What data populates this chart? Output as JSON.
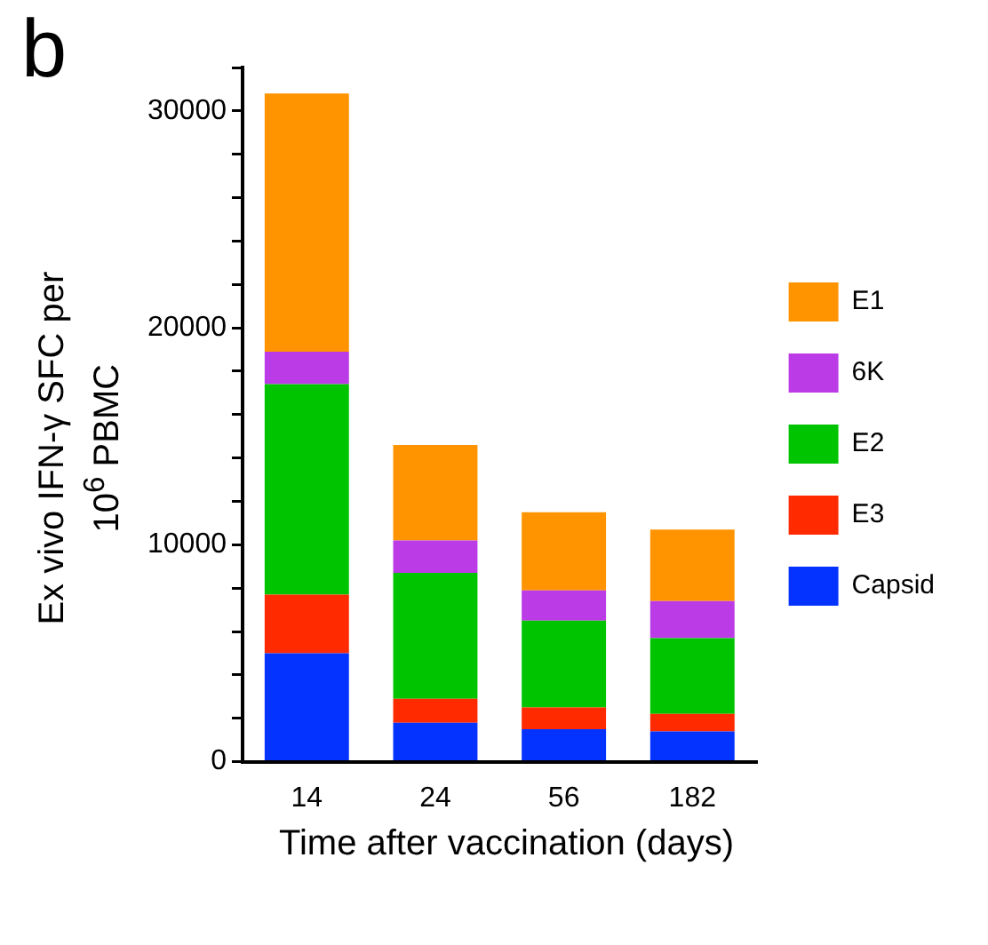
{
  "chart_data": {
    "type": "bar",
    "stacked": true,
    "categories": [
      "14",
      "24",
      "56",
      "182"
    ],
    "series": [
      {
        "name": "Capsid",
        "color": "#0433ff",
        "values": [
          5000,
          1800,
          1500,
          1400
        ]
      },
      {
        "name": "E3",
        "color": "#ff2a00",
        "values": [
          2700,
          1100,
          1000,
          800
        ]
      },
      {
        "name": "E2",
        "color": "#00c400",
        "values": [
          9700,
          5800,
          4000,
          3500
        ]
      },
      {
        "name": "6K",
        "color": "#bb3be6",
        "values": [
          1500,
          1500,
          1400,
          1700
        ]
      },
      {
        "name": "E1",
        "color": "#ff9400",
        "values": [
          11900,
          4400,
          3600,
          3300
        ]
      }
    ],
    "ylim": [
      0,
      32000
    ],
    "yticks": [
      0,
      {
        "value": 2000,
        "label": null
      },
      {
        "value": 4000,
        "label": null
      },
      {
        "value": 6000,
        "label": null
      },
      {
        "value": 8000,
        "label": null
      },
      10000,
      {
        "value": 12000,
        "label": null
      },
      {
        "value": 14000,
        "label": null
      },
      {
        "value": 16000,
        "label": null
      },
      {
        "value": 18000,
        "label": null
      },
      20000,
      {
        "value": 22000,
        "label": null
      },
      {
        "value": 24000,
        "label": null
      },
      {
        "value": 26000,
        "label": null
      },
      {
        "value": 28000,
        "label": null
      },
      30000,
      {
        "value": 32000,
        "label": null
      }
    ],
    "xlabel": "Time after vaccination (days)",
    "ylabel": "Ex vivo IFN-γ SFC per 10$^{6}$ PBMC",
    "annotations": [
      "b"
    ],
    "legend": "right",
    "grid": false
  }
}
